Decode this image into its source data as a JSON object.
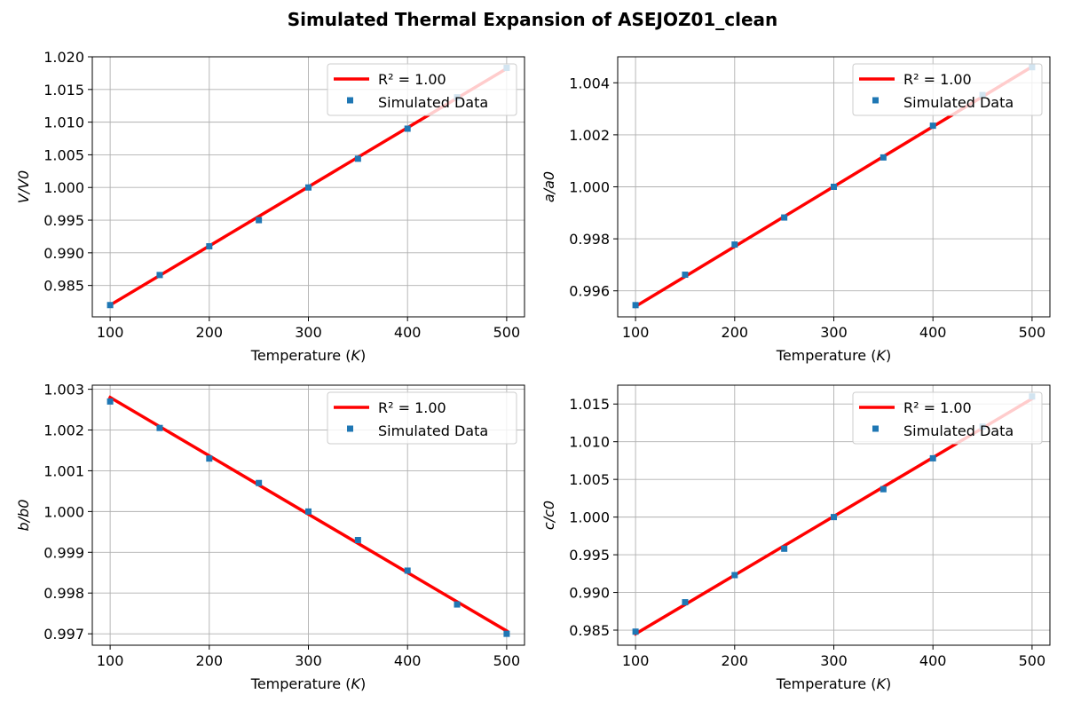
{
  "title": "Simulated Thermal Expansion of ASEJOZ01_clean",
  "colors": {
    "fit_line": "#ff0000",
    "markers": "#1f77b4",
    "grid": "#b0b0b0"
  },
  "chart_data": [
    {
      "type": "scatter",
      "xlabel": "Temperature (K)",
      "ylabel": "V/V0",
      "grid": true,
      "legend": {
        "placement": "top-right",
        "fit_label": "R² = 1.00",
        "data_label": "Simulated Data"
      },
      "xlim": [
        82,
        518
      ],
      "ylim": [
        0.9802,
        1.02
      ],
      "xticks": [
        100,
        200,
        300,
        400,
        500
      ],
      "xtick_labels": [
        "100",
        "200",
        "300",
        "400",
        "500"
      ],
      "yticks": [
        0.985,
        0.99,
        0.995,
        1.0,
        1.005,
        1.01,
        1.015,
        1.02
      ],
      "ytick_labels": [
        "0.985",
        "0.990",
        "0.995",
        "1.000",
        "1.005",
        "1.010",
        "1.015",
        "1.020"
      ],
      "x": [
        100,
        150,
        200,
        250,
        300,
        350,
        400,
        450,
        500
      ],
      "y": [
        0.982,
        0.9866,
        0.991,
        0.995,
        1.0,
        1.0044,
        1.009,
        1.0138,
        1.0183
      ],
      "fit": {
        "x": [
          100,
          500
        ],
        "y": [
          0.982,
          1.0182
        ]
      }
    },
    {
      "type": "scatter",
      "xlabel": "Temperature (K)",
      "ylabel": "a/a0",
      "grid": true,
      "legend": {
        "placement": "top-right",
        "fit_label": "R² = 1.00",
        "data_label": "Simulated Data"
      },
      "xlim": [
        82,
        518
      ],
      "ylim": [
        0.995,
        1.005
      ],
      "xticks": [
        100,
        200,
        300,
        400,
        500
      ],
      "xtick_labels": [
        "100",
        "200",
        "300",
        "400",
        "500"
      ],
      "yticks": [
        0.996,
        0.998,
        1.0,
        1.002,
        1.004
      ],
      "ytick_labels": [
        "0.996",
        "0.998",
        "1.000",
        "1.002",
        "1.004"
      ],
      "x": [
        100,
        150,
        200,
        250,
        300,
        350,
        400,
        450,
        500
      ],
      "y": [
        0.99545,
        0.99662,
        0.99778,
        0.99882,
        1.0,
        1.00113,
        1.00235,
        1.00353,
        1.0046
      ],
      "fit": {
        "x": [
          100,
          500
        ],
        "y": [
          0.9954,
          1.00462
        ]
      }
    },
    {
      "type": "scatter",
      "xlabel": "Temperature (K)",
      "ylabel": "b/b0",
      "grid": true,
      "legend": {
        "placement": "top-right",
        "fit_label": "R² = 1.00",
        "data_label": "Simulated Data"
      },
      "xlim": [
        82,
        518
      ],
      "ylim": [
        0.99672,
        1.0031
      ],
      "xticks": [
        100,
        200,
        300,
        400,
        500
      ],
      "xtick_labels": [
        "100",
        "200",
        "300",
        "400",
        "500"
      ],
      "yticks": [
        0.997,
        0.998,
        0.999,
        1.0,
        1.001,
        1.002,
        1.003
      ],
      "ytick_labels": [
        "0.997",
        "0.998",
        "0.999",
        "1.000",
        "1.001",
        "1.002",
        "1.003"
      ],
      "x": [
        100,
        150,
        200,
        250,
        300,
        350,
        400,
        450,
        500
      ],
      "y": [
        1.0027,
        1.00205,
        1.0013,
        1.0007,
        1.0,
        0.9993,
        0.99855,
        0.99772,
        0.997
      ],
      "fit": {
        "x": [
          100,
          500
        ],
        "y": [
          1.0028,
          0.99707
        ]
      }
    },
    {
      "type": "scatter",
      "xlabel": "Temperature (K)",
      "ylabel": "c/c0",
      "grid": true,
      "legend": {
        "placement": "top-right",
        "fit_label": "R² = 1.00",
        "data_label": "Simulated Data"
      },
      "xlim": [
        82,
        518
      ],
      "ylim": [
        0.983,
        1.0175
      ],
      "xticks": [
        100,
        200,
        300,
        400,
        500
      ],
      "xtick_labels": [
        "100",
        "200",
        "300",
        "400",
        "500"
      ],
      "yticks": [
        0.985,
        0.99,
        0.995,
        1.0,
        1.005,
        1.01,
        1.015
      ],
      "ytick_labels": [
        "0.985",
        "0.990",
        "0.995",
        "1.000",
        "1.005",
        "1.010",
        "1.015"
      ],
      "x": [
        100,
        150,
        200,
        250,
        300,
        350,
        400,
        450,
        500
      ],
      "y": [
        0.9848,
        0.9887,
        0.9923,
        0.9958,
        1.0,
        1.0037,
        1.0078,
        1.012,
        1.016
      ],
      "fit": {
        "x": [
          100,
          500
        ],
        "y": [
          0.9845,
          1.0157
        ]
      }
    }
  ]
}
